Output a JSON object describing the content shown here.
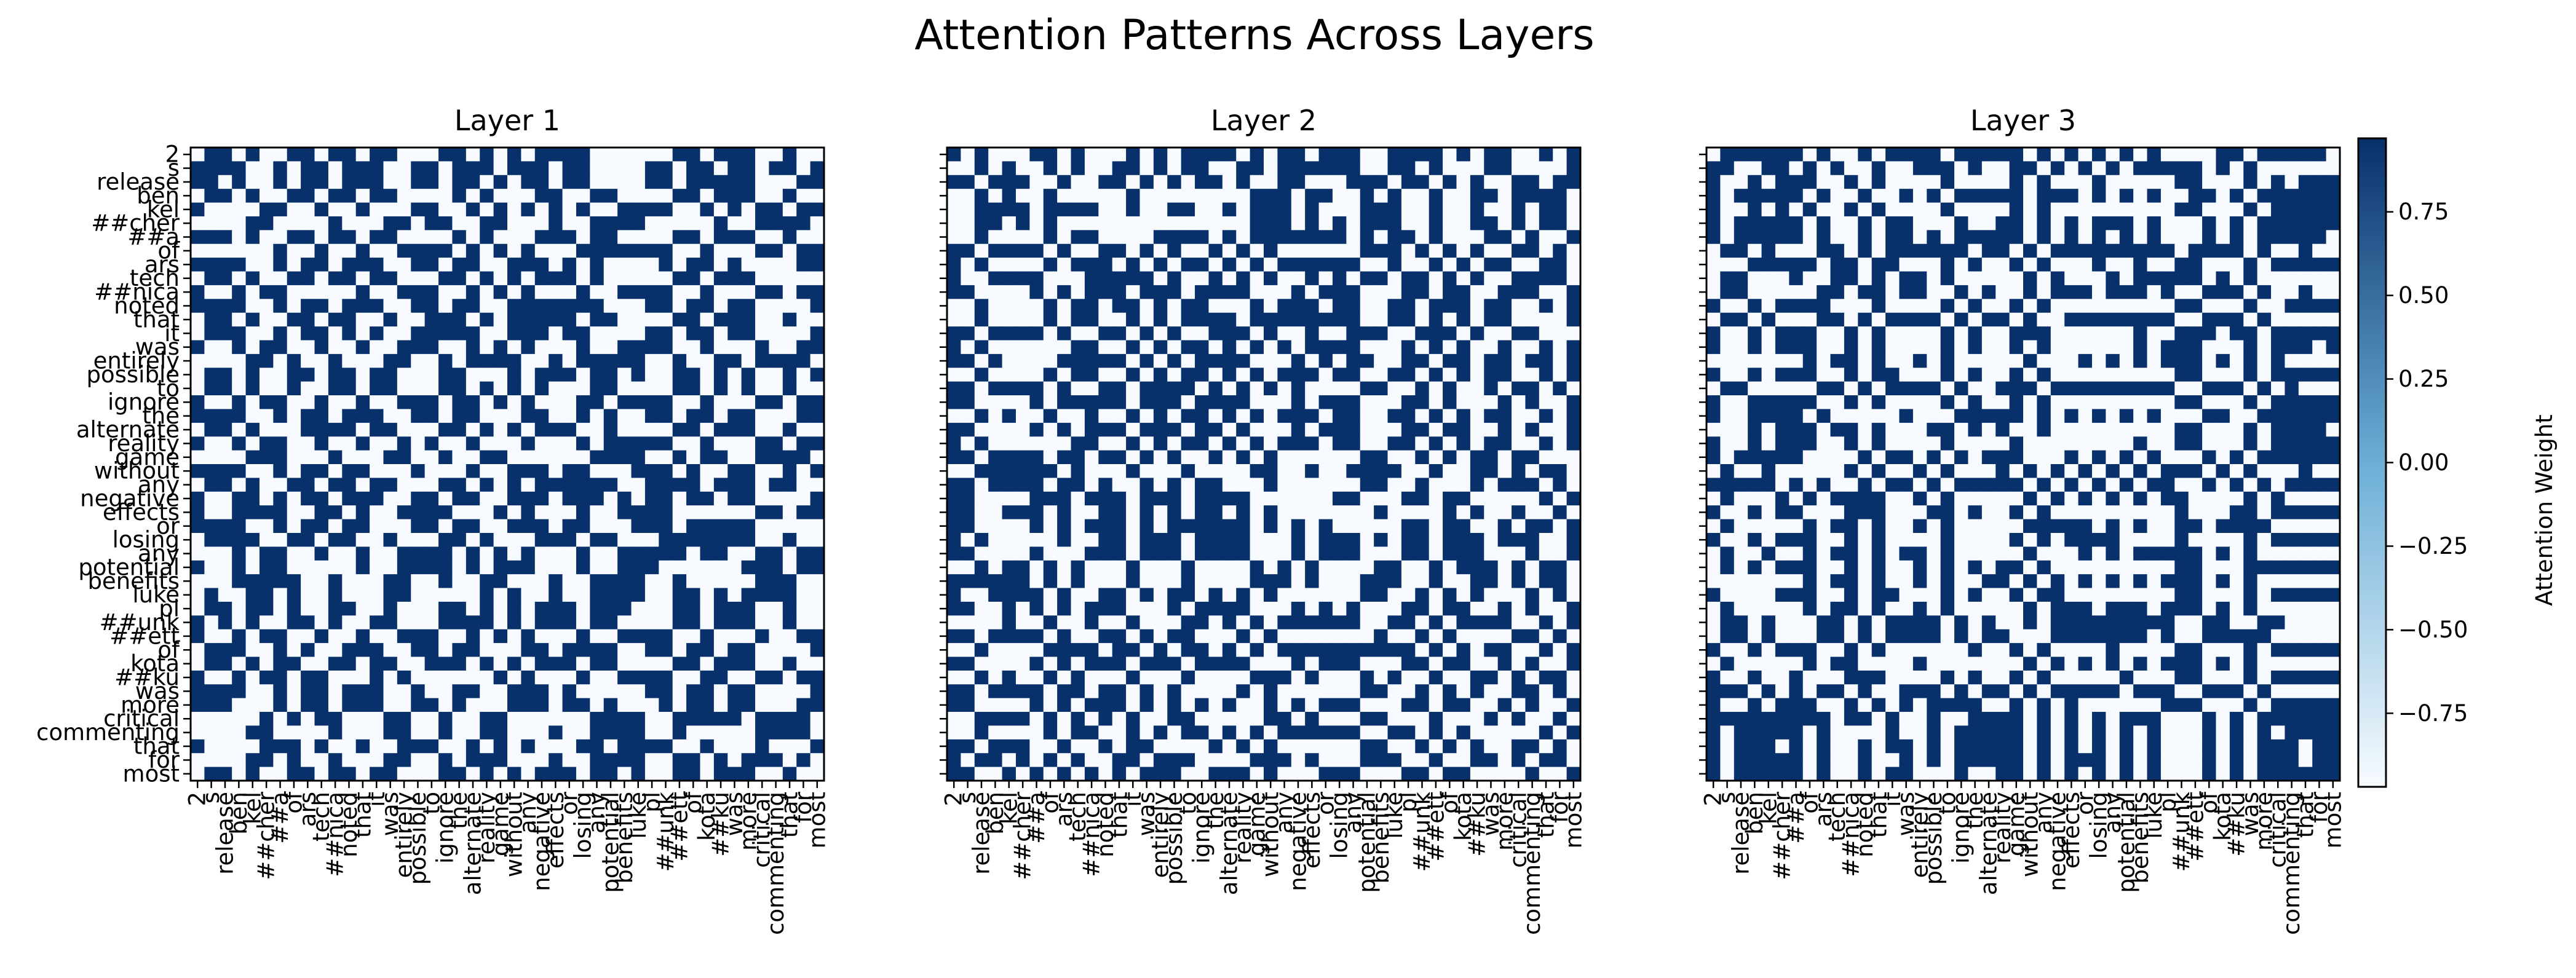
{
  "chart_data": {
    "type": "heatmap",
    "title": "Attention Patterns Across Layers",
    "tokens": [
      "2",
      "s",
      "release",
      "ben",
      "kel",
      "##cher",
      "##a",
      "of",
      "ars",
      "tech",
      "##nica",
      "noted",
      "that",
      "it",
      "was",
      "entirely",
      "possible",
      "to",
      "ignore",
      "the",
      "alternate",
      "reality",
      "game",
      "without",
      "any",
      "negative",
      "effects",
      "or",
      "losing",
      "any",
      "potential",
      "benefits",
      "luke",
      "pl",
      "##unk",
      "##ett",
      "of",
      "kota",
      "##ku",
      "was",
      "more",
      "critical",
      "commenting",
      "that",
      "for",
      "most"
    ],
    "colorbar": {
      "label": "Attention Weight",
      "ticks": [
        0.75,
        0.5,
        0.25,
        0.0,
        -0.25,
        -0.5,
        -0.75
      ],
      "tick_labels": [
        "0.75",
        "0.50",
        "0.25",
        "0.00",
        "−0.25",
        "−0.50",
        "−0.75"
      ],
      "range": [
        -0.97,
        0.97
      ],
      "colormap": "Blues",
      "low_color": "#f7fbff",
      "mid_color": "#6baed6",
      "high_color": "#08306b"
    },
    "panels": [
      {
        "title": "Layer 1",
        "show_y_labels": true,
        "seed": 11
      },
      {
        "title": "Layer 2",
        "show_y_labels": false,
        "seed": 23
      },
      {
        "title": "Layer 3",
        "show_y_labels": false,
        "seed": 37
      }
    ],
    "cell_values": [
      -0.97,
      0.97
    ],
    "grid": false
  }
}
